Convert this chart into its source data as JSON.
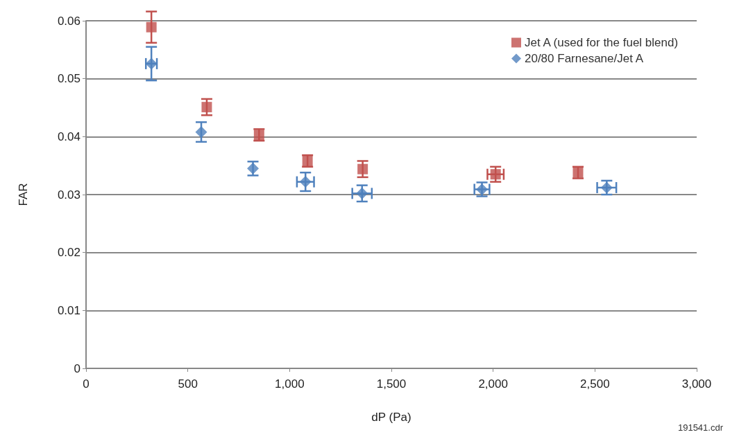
{
  "chart_data": {
    "type": "scatter",
    "xlabel": "dP (Pa)",
    "ylabel": "FAR",
    "xlim": [
      0,
      3000
    ],
    "xticks": [
      0,
      500,
      {
        "value": 1000,
        "label": "1,000"
      },
      {
        "value": 1500,
        "label": "1,500"
      },
      {
        "value": 2000,
        "label": "2,000"
      },
      {
        "value": 2500,
        "label": "2,500"
      },
      {
        "value": 3000,
        "label": "3,000"
      }
    ],
    "ylim": [
      0,
      0.06
    ],
    "yticks": [
      0,
      0.01,
      0.02,
      0.03,
      0.04,
      0.05,
      0.06
    ],
    "grid": "y",
    "legend": "top right",
    "annotations": [
      "191541.cdr"
    ],
    "series": [
      {
        "name": "Jet A (used for the fuel blend)",
        "color": "#c0504d",
        "marker": "square",
        "x": [
          321,
          593,
          850,
          1088,
          1359,
          2012,
          2417
        ],
        "values": [
          0.0589,
          0.0451,
          0.0403,
          0.0358,
          0.0344,
          0.0335,
          0.0338
        ],
        "errors": [
          0.0027,
          0.0014,
          0.001,
          0.001,
          0.0014,
          0.0013,
          0.001
        ],
        "xerrors": [
          null,
          null,
          null,
          null,
          null,
          40,
          null
        ]
      },
      {
        "name": "20/80 Farnesane/Jet A",
        "color": "#4f81bd",
        "marker": "diamond",
        "x": [
          321,
          566,
          820,
          1078,
          1356,
          1945,
          2558
        ],
        "values": [
          0.0526,
          0.0408,
          0.0345,
          0.0322,
          0.0302,
          0.0309,
          0.0312
        ],
        "errors": [
          0.0029,
          0.0017,
          0.0012,
          0.0016,
          0.0014,
          0.0012,
          0.0012
        ],
        "xerrors": [
          27,
          null,
          null,
          42,
          48,
          37,
          47
        ]
      }
    ]
  }
}
